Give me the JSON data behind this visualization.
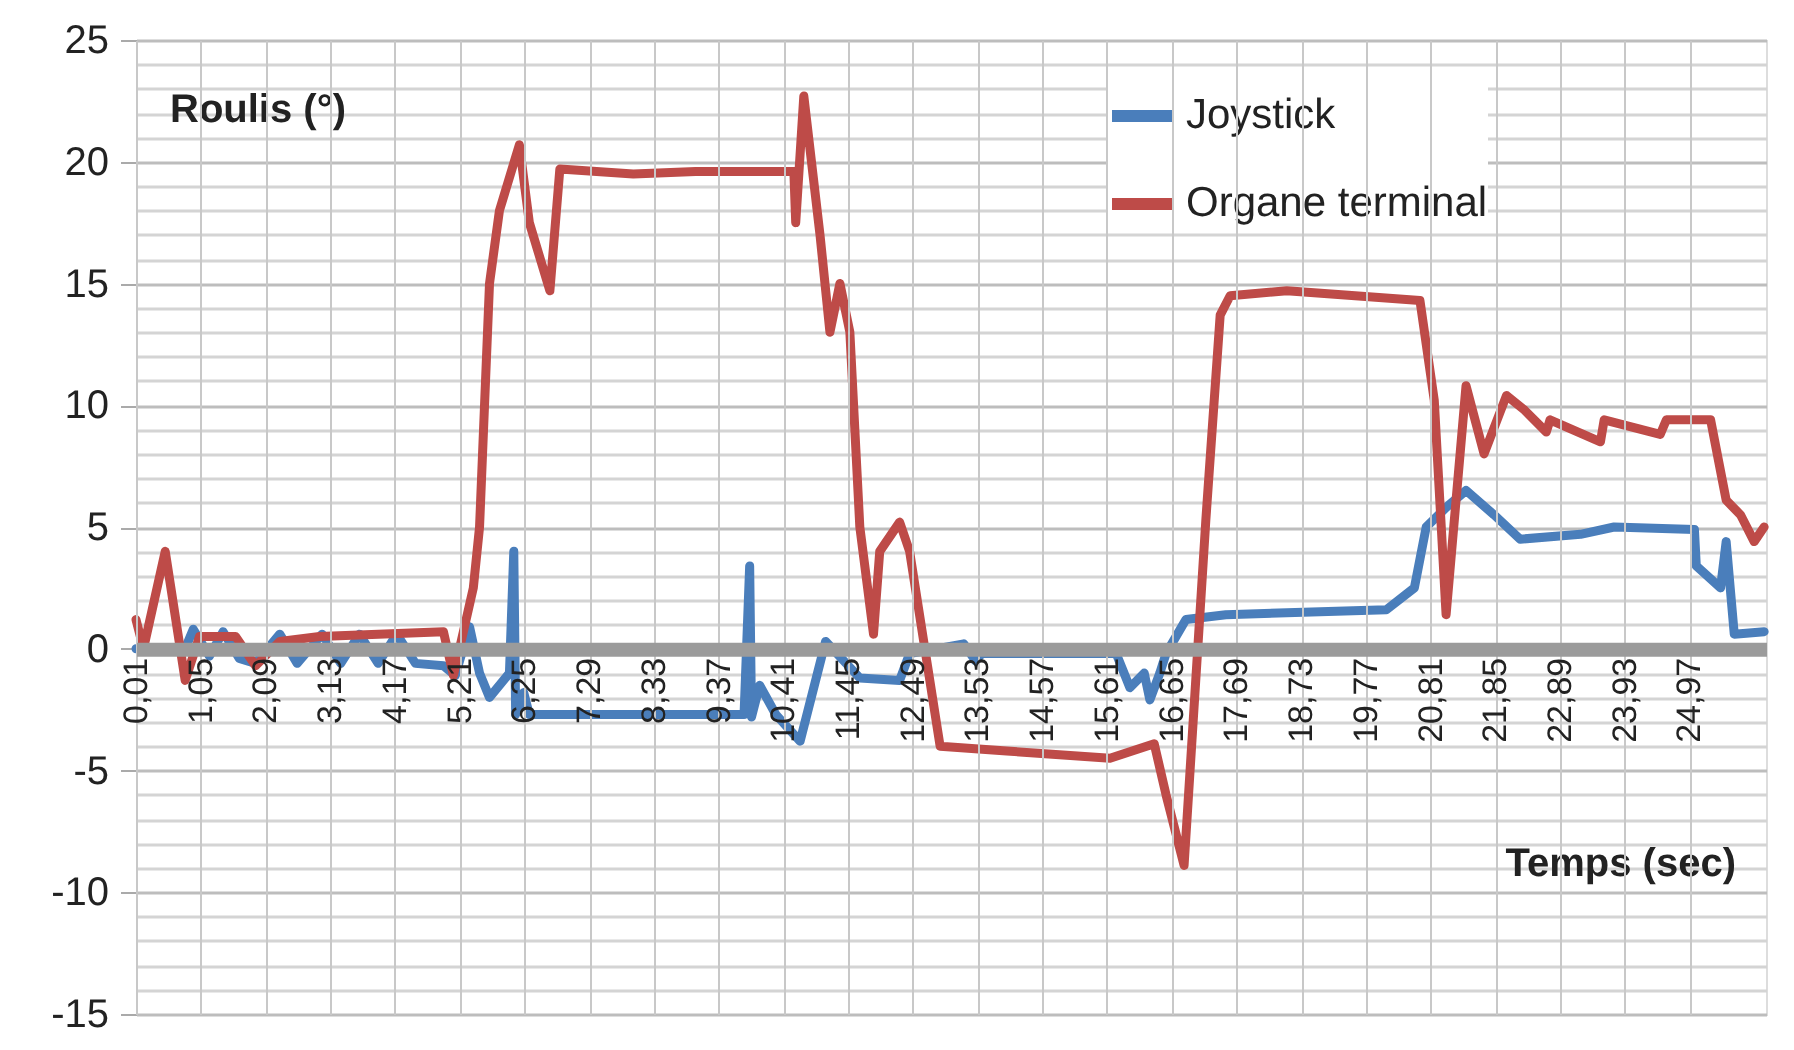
{
  "chart_data": {
    "type": "line",
    "xlabel": "Temps (sec)",
    "ylabel": "Roulis (°)",
    "xlim": [
      0.01,
      26.2
    ],
    "ylim": [
      -15,
      25
    ],
    "xticks": [
      {
        "value": 0.01,
        "label": "0,01"
      },
      {
        "value": 1.05,
        "label": "1,05"
      },
      {
        "value": 2.09,
        "label": "2,09"
      },
      {
        "value": 3.13,
        "label": "3,13"
      },
      {
        "value": 4.17,
        "label": "4,17"
      },
      {
        "value": 5.21,
        "label": "5,21"
      },
      {
        "value": 6.25,
        "label": "6,25"
      },
      {
        "value": 7.29,
        "label": "7,29"
      },
      {
        "value": 8.33,
        "label": "8,33"
      },
      {
        "value": 9.37,
        "label": "9,37"
      },
      {
        "value": 10.41,
        "label": "10,41"
      },
      {
        "value": 11.45,
        "label": "11,45"
      },
      {
        "value": 12.49,
        "label": "12,49"
      },
      {
        "value": 13.53,
        "label": "13,53"
      },
      {
        "value": 14.57,
        "label": "14,57"
      },
      {
        "value": 15.61,
        "label": "15,61"
      },
      {
        "value": 16.65,
        "label": "16,65"
      },
      {
        "value": 17.69,
        "label": "17,69"
      },
      {
        "value": 18.73,
        "label": "18,73"
      },
      {
        "value": 19.77,
        "label": "19,77"
      },
      {
        "value": 20.81,
        "label": "20,81"
      },
      {
        "value": 21.85,
        "label": "21,85"
      },
      {
        "value": 22.89,
        "label": "22,89"
      },
      {
        "value": 23.93,
        "label": "23,93"
      },
      {
        "value": 24.97,
        "label": "24,97"
      }
    ],
    "yticks": [
      -15,
      {
        "value": -14,
        "label": null
      },
      {
        "value": -13,
        "label": null
      },
      {
        "value": -12,
        "label": null
      },
      {
        "value": -11,
        "label": null
      },
      -10,
      {
        "value": -9,
        "label": null
      },
      {
        "value": -8,
        "label": null
      },
      {
        "value": -7,
        "label": null
      },
      {
        "value": -6,
        "label": null
      },
      -5,
      {
        "value": -4,
        "label": null
      },
      {
        "value": -3,
        "label": null
      },
      {
        "value": -2,
        "label": null
      },
      {
        "value": -1,
        "label": null
      },
      0,
      {
        "value": 1,
        "label": null
      },
      {
        "value": 2,
        "label": null
      },
      {
        "value": 3,
        "label": null
      },
      {
        "value": 4,
        "label": null
      },
      5,
      {
        "value": 6,
        "label": null
      },
      {
        "value": 7,
        "label": null
      },
      {
        "value": 8,
        "label": null
      },
      {
        "value": 9,
        "label": null
      },
      10,
      {
        "value": 11,
        "label": null
      },
      {
        "value": 12,
        "label": null
      },
      {
        "value": 13,
        "label": null
      },
      {
        "value": 14,
        "label": null
      },
      15,
      {
        "value": 16,
        "label": null
      },
      {
        "value": 17,
        "label": null
      },
      {
        "value": 18,
        "label": null
      },
      {
        "value": 19,
        "label": null
      },
      20,
      {
        "value": 21,
        "label": null
      },
      {
        "value": 22,
        "label": null
      },
      {
        "value": 23,
        "label": null
      },
      {
        "value": 24,
        "label": null
      },
      25
    ],
    "grid": true,
    "legend": "top right",
    "marker": "none",
    "line_style": "solid",
    "series": [
      {
        "name": "Joystick",
        "color": "#4a7ebb",
        "x": [
          0.01,
          0.8,
          0.93,
          1.19,
          1.41,
          1.67,
          1.93,
          2.32,
          2.6,
          3.0,
          3.3,
          3.6,
          3.9,
          4.2,
          4.5,
          4.95,
          5.14,
          5.37,
          5.53,
          5.69,
          6.01,
          6.08,
          6.11,
          6.24,
          6.33,
          9.78,
          9.87,
          9.9,
          10.03,
          10.29,
          10.68,
          11.09,
          11.64,
          12.28,
          12.44,
          13.31,
          13.5,
          13.6,
          15.76,
          15.98,
          16.21,
          16.3,
          16.46,
          16.56,
          16.88,
          17.52,
          20.1,
          20.55,
          20.74,
          21.06,
          21.38,
          21.83,
          22.25,
          23.22,
          23.76,
          25.05,
          25.08,
          25.47,
          25.56,
          25.69,
          26.17
        ],
        "values": [
          0,
          0,
          0.8,
          -0.3,
          0.7,
          -0.4,
          -0.6,
          0.6,
          -0.6,
          0.6,
          -0.6,
          0.6,
          -0.6,
          0.6,
          -0.6,
          -0.7,
          -1.1,
          0.9,
          -1.0,
          -2.0,
          -1.0,
          4.0,
          -2.7,
          -1.8,
          -2.7,
          -2.7,
          3.4,
          -2.8,
          -1.5,
          -2.7,
          -3.8,
          0.3,
          -1.2,
          -1.3,
          -0.2,
          0.2,
          -0.5,
          -0.2,
          -0.2,
          -1.6,
          -1.0,
          -2.1,
          -1.0,
          -0.2,
          1.2,
          1.4,
          1.6,
          2.5,
          5.0,
          5.8,
          6.5,
          5.5,
          4.5,
          4.7,
          5.0,
          4.9,
          3.4,
          2.5,
          4.4,
          0.6,
          0.7
        ]
      },
      {
        "name": "Organe terminal",
        "color": "#be4b48",
        "x": [
          0.01,
          0.13,
          0.48,
          0.8,
          1.03,
          1.61,
          1.93,
          2.32,
          2.96,
          4.95,
          5.11,
          5.43,
          5.53,
          5.69,
          5.85,
          6.17,
          6.33,
          6.66,
          6.82,
          8.0,
          9.0,
          10.58,
          10.61,
          10.74,
          11.0,
          11.16,
          11.32,
          11.48,
          11.64,
          11.86,
          11.96,
          12.28,
          12.44,
          12.93,
          14.0,
          15.66,
          16.37,
          16.56,
          16.85,
          17.2,
          17.43,
          17.59,
          18.5,
          20.64,
          20.87,
          21.06,
          21.38,
          21.67,
          22.03,
          22.32,
          22.67,
          22.73,
          23.54,
          23.6,
          24.5,
          24.6,
          25.31,
          25.56,
          25.79,
          26.01,
          26.17
        ],
        "values": [
          1.2,
          0.0,
          4.0,
          -1.3,
          0.5,
          0.5,
          -0.7,
          0.3,
          0.5,
          0.7,
          -1.1,
          2.5,
          5.0,
          15,
          18,
          20.7,
          17.5,
          14.7,
          19.7,
          19.5,
          19.6,
          19.6,
          17.5,
          22.7,
          17,
          13,
          15,
          13,
          5,
          0.6,
          4.0,
          5.2,
          4,
          -4.0,
          -4.2,
          -4.5,
          -3.9,
          -6,
          -8.9,
          5.3,
          13.7,
          14.5,
          14.7,
          14.3,
          10.2,
          1.4,
          10.8,
          8.0,
          10.4,
          9.8,
          8.9,
          9.4,
          8.5,
          9.4,
          8.8,
          9.4,
          9.4,
          6.1,
          5.5,
          4.4,
          5.0
        ]
      }
    ]
  }
}
